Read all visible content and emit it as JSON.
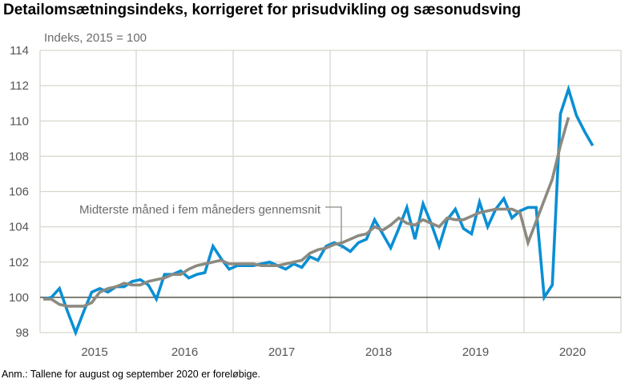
{
  "chart_data": {
    "type": "line",
    "title": "Detailomsætningsindeks, korrigeret for prisudvikling og sæsonudsving",
    "ylabel": "Indeks, 2015 = 100",
    "ylim": [
      98,
      114
    ],
    "yticks": [
      98,
      100,
      102,
      104,
      106,
      108,
      110,
      112,
      114
    ],
    "xticks": [
      "2015",
      "2016",
      "2017",
      "2018",
      "2019",
      "2020"
    ],
    "x_start": "2015-01",
    "frequency": "monthly",
    "grid": true,
    "reference_line": 100,
    "colors": {
      "index": "#0a8fd4",
      "average": "#8c8a80",
      "grid": "#d8d6cc",
      "reference": "#55554a"
    },
    "annotation": "Midterste måned i fem måneders gennemsnit",
    "series": [
      {
        "key": "index",
        "values": [
          99.9,
          100.0,
          100.5,
          99.2,
          98.0,
          99.2,
          100.3,
          100.5,
          100.3,
          100.6,
          100.6,
          100.9,
          101.0,
          100.7,
          99.9,
          101.3,
          101.3,
          101.5,
          101.1,
          101.3,
          101.4,
          102.9,
          102.2,
          101.6,
          101.8,
          101.8,
          101.8,
          101.9,
          102.0,
          101.8,
          101.6,
          101.9,
          101.7,
          102.3,
          102.1,
          102.9,
          103.1,
          102.9,
          102.6,
          103.1,
          103.3,
          104.4,
          103.6,
          102.8,
          103.9,
          105.1,
          103.3,
          105.3,
          104.2,
          102.9,
          104.4,
          105.0,
          103.9,
          103.6,
          105.4,
          104.0,
          105.0,
          105.6,
          104.5,
          104.9,
          105.1,
          105.1,
          100.0,
          100.7,
          110.4,
          111.8,
          110.3,
          109.4,
          108.6
        ]
      },
      {
        "name": "Midterste måned i fem måneders gennemsnit",
        "key": "average",
        "values": [
          99.9,
          99.9,
          99.6,
          99.5,
          99.5,
          99.5,
          99.7,
          100.3,
          100.5,
          100.6,
          100.8,
          100.7,
          100.7,
          100.9,
          101.0,
          101.1,
          101.3,
          101.3,
          101.6,
          101.8,
          101.9,
          102.0,
          102.1,
          101.9,
          101.9,
          101.9,
          101.9,
          101.8,
          101.8,
          101.8,
          101.9,
          102.0,
          102.1,
          102.5,
          102.7,
          102.8,
          103.0,
          103.1,
          103.3,
          103.5,
          103.6,
          104.0,
          103.8,
          104.1,
          104.5,
          104.2,
          104.1,
          104.4,
          104.2,
          104.0,
          104.5,
          104.4,
          104.4,
          104.6,
          104.8,
          104.9,
          105.0,
          105.0,
          105.0,
          104.8,
          103.1,
          104.3,
          105.5,
          106.7,
          108.6,
          110.2
        ]
      }
    ],
    "note": "Anm.: Tallene for august og september 2020 er foreløbige."
  }
}
